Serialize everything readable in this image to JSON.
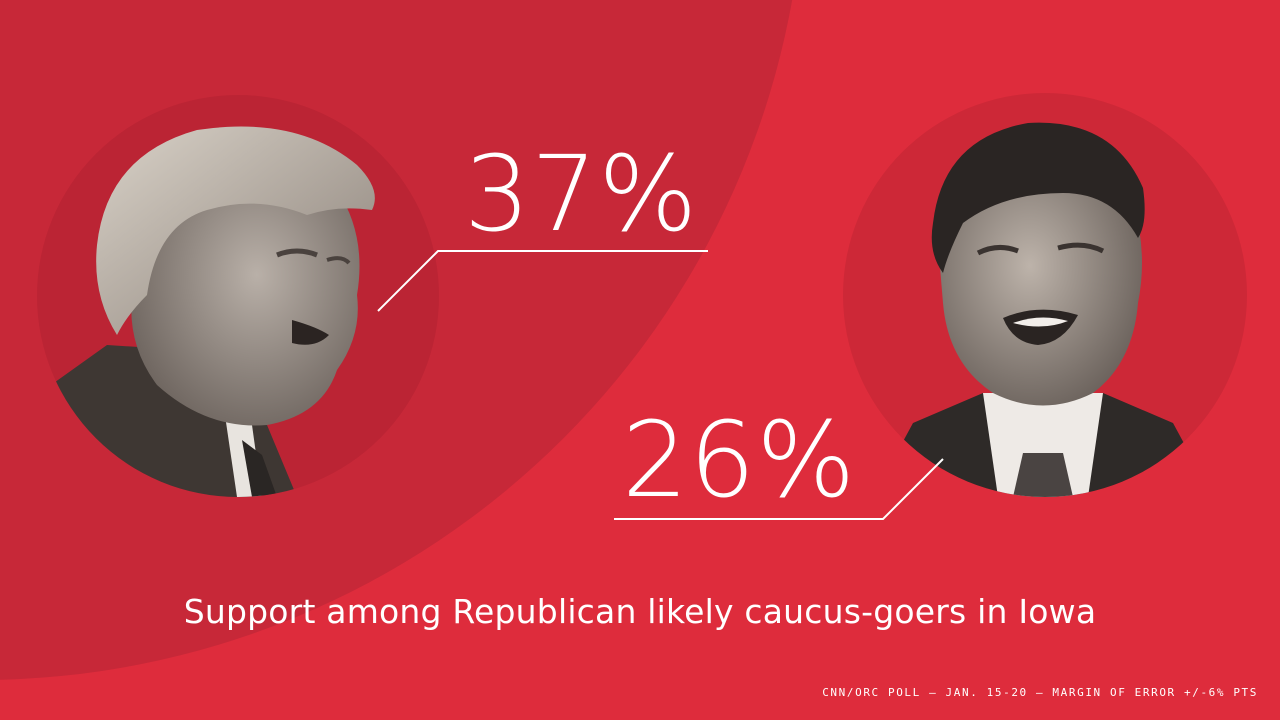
{
  "candidates": [
    {
      "percent": "37%"
    },
    {
      "percent": "26%"
    }
  ],
  "caption": "Support among Republican likely caucus-goers in Iowa",
  "source": "CNN/ORC POLL — JAN. 15-20 — MARGIN OF ERROR +/-6% PTS",
  "colors": {
    "background": "#de2c3c",
    "arc": "#c72838",
    "text": "#ffffff"
  }
}
